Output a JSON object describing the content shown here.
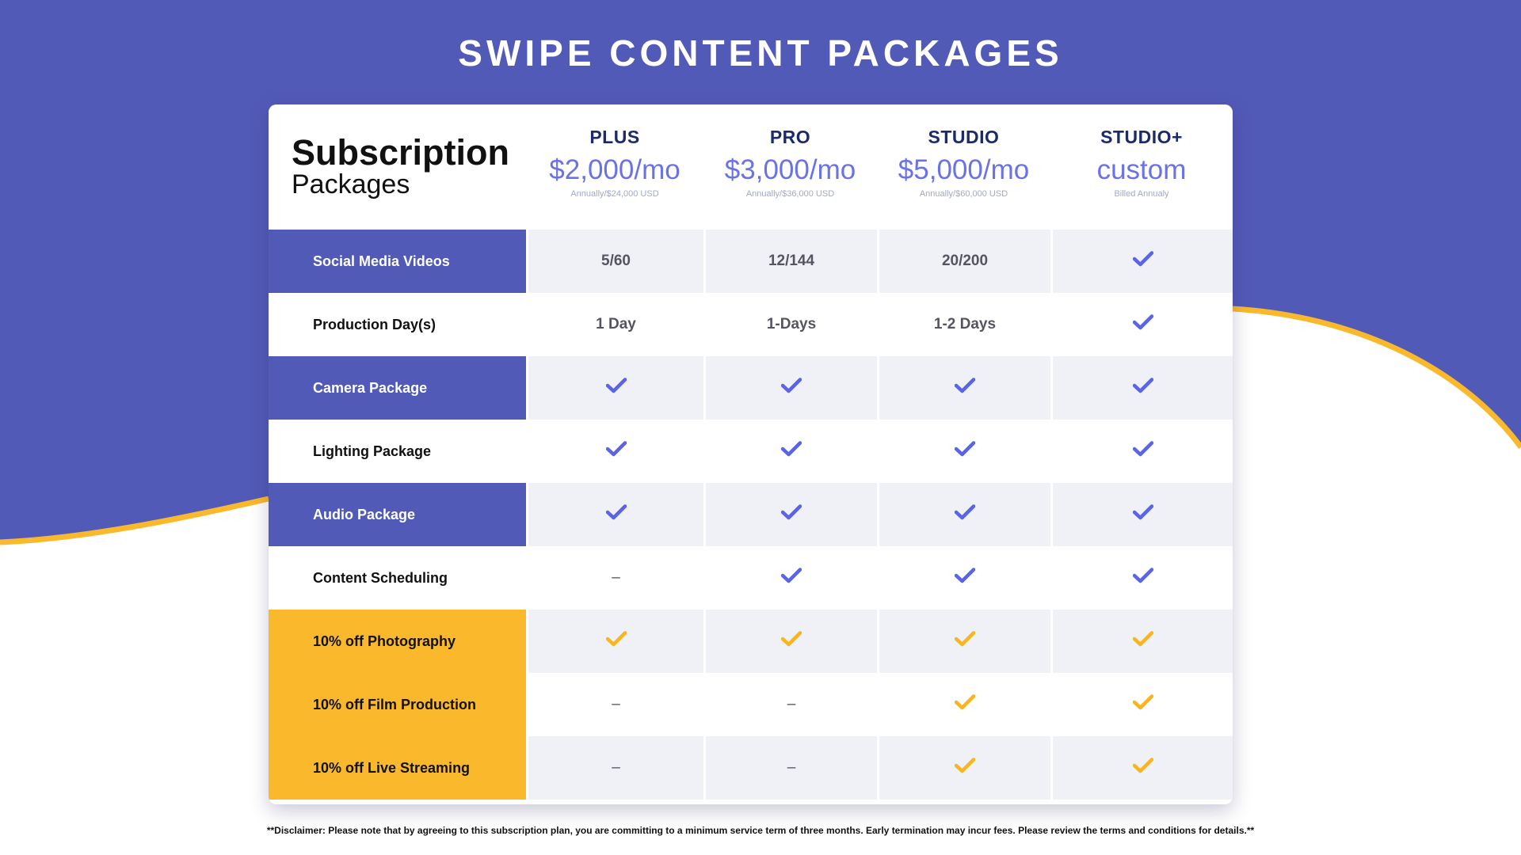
{
  "page": {
    "title": "SWIPE CONTENT PACKAGES",
    "colors": {
      "background": "#525ab8",
      "accent_yellow": "#fab92c",
      "check_blue": "#5b63e8",
      "check_yellow": "#f9b51d"
    }
  },
  "table": {
    "heading_main": "Subscription",
    "heading_sub": "Packages",
    "plans": [
      {
        "name": "PLUS",
        "price": "$2,000/mo",
        "note": "Annually/$24,000 USD"
      },
      {
        "name": "PRO",
        "price": "$3,000/mo",
        "note": "Annually/$36,000 USD"
      },
      {
        "name": "STUDIO",
        "price": "$5,000/mo",
        "note": "Annually/$60,000 USD"
      },
      {
        "name": "STUDIO+",
        "price": "custom",
        "note": "Billed Annualy"
      }
    ],
    "rows": [
      {
        "label": "Social Media Videos",
        "style": "blue",
        "cells": [
          {
            "type": "text",
            "value": "5/60"
          },
          {
            "type": "text",
            "value": "12/144"
          },
          {
            "type": "text",
            "value": "20/200"
          },
          {
            "type": "check",
            "color": "blue"
          }
        ]
      },
      {
        "label": "Production Day(s)",
        "style": "white",
        "cells": [
          {
            "type": "text",
            "value": "1 Day"
          },
          {
            "type": "text",
            "value": "1-Days"
          },
          {
            "type": "text",
            "value": "1-2 Days"
          },
          {
            "type": "check",
            "color": "blue"
          }
        ]
      },
      {
        "label": "Camera Package",
        "style": "blue",
        "cells": [
          {
            "type": "check",
            "color": "blue"
          },
          {
            "type": "check",
            "color": "blue"
          },
          {
            "type": "check",
            "color": "blue"
          },
          {
            "type": "check",
            "color": "blue"
          }
        ]
      },
      {
        "label": "Lighting Package",
        "style": "white",
        "cells": [
          {
            "type": "check",
            "color": "blue"
          },
          {
            "type": "check",
            "color": "blue"
          },
          {
            "type": "check",
            "color": "blue"
          },
          {
            "type": "check",
            "color": "blue"
          }
        ]
      },
      {
        "label": "Audio Package",
        "style": "blue",
        "cells": [
          {
            "type": "check",
            "color": "blue"
          },
          {
            "type": "check",
            "color": "blue"
          },
          {
            "type": "check",
            "color": "blue"
          },
          {
            "type": "check",
            "color": "blue"
          }
        ]
      },
      {
        "label": "Content Scheduling",
        "style": "white",
        "cells": [
          {
            "type": "dash",
            "value": "–"
          },
          {
            "type": "check",
            "color": "blue"
          },
          {
            "type": "check",
            "color": "blue"
          },
          {
            "type": "check",
            "color": "blue"
          }
        ]
      },
      {
        "label": "10% off Photography",
        "style": "yellow",
        "cells": [
          {
            "type": "check",
            "color": "yellow"
          },
          {
            "type": "check",
            "color": "yellow"
          },
          {
            "type": "check",
            "color": "yellow"
          },
          {
            "type": "check",
            "color": "yellow"
          }
        ]
      },
      {
        "label": "10% off Film Production",
        "style": "yellow",
        "cells": [
          {
            "type": "dash",
            "value": "–"
          },
          {
            "type": "dash",
            "value": "–"
          },
          {
            "type": "check",
            "color": "yellow"
          },
          {
            "type": "check",
            "color": "yellow"
          }
        ]
      },
      {
        "label": "10% off Live Streaming",
        "style": "yellow",
        "cells": [
          {
            "type": "dash",
            "value": "–"
          },
          {
            "type": "dash",
            "value": "–"
          },
          {
            "type": "check",
            "color": "yellow"
          },
          {
            "type": "check",
            "color": "yellow"
          }
        ]
      }
    ]
  },
  "disclaimer": "**Disclaimer: Please note that by agreeing to this subscription plan, you are committing to a minimum service term of three months. Early termination may incur fees. Please review the terms and conditions for details.**"
}
